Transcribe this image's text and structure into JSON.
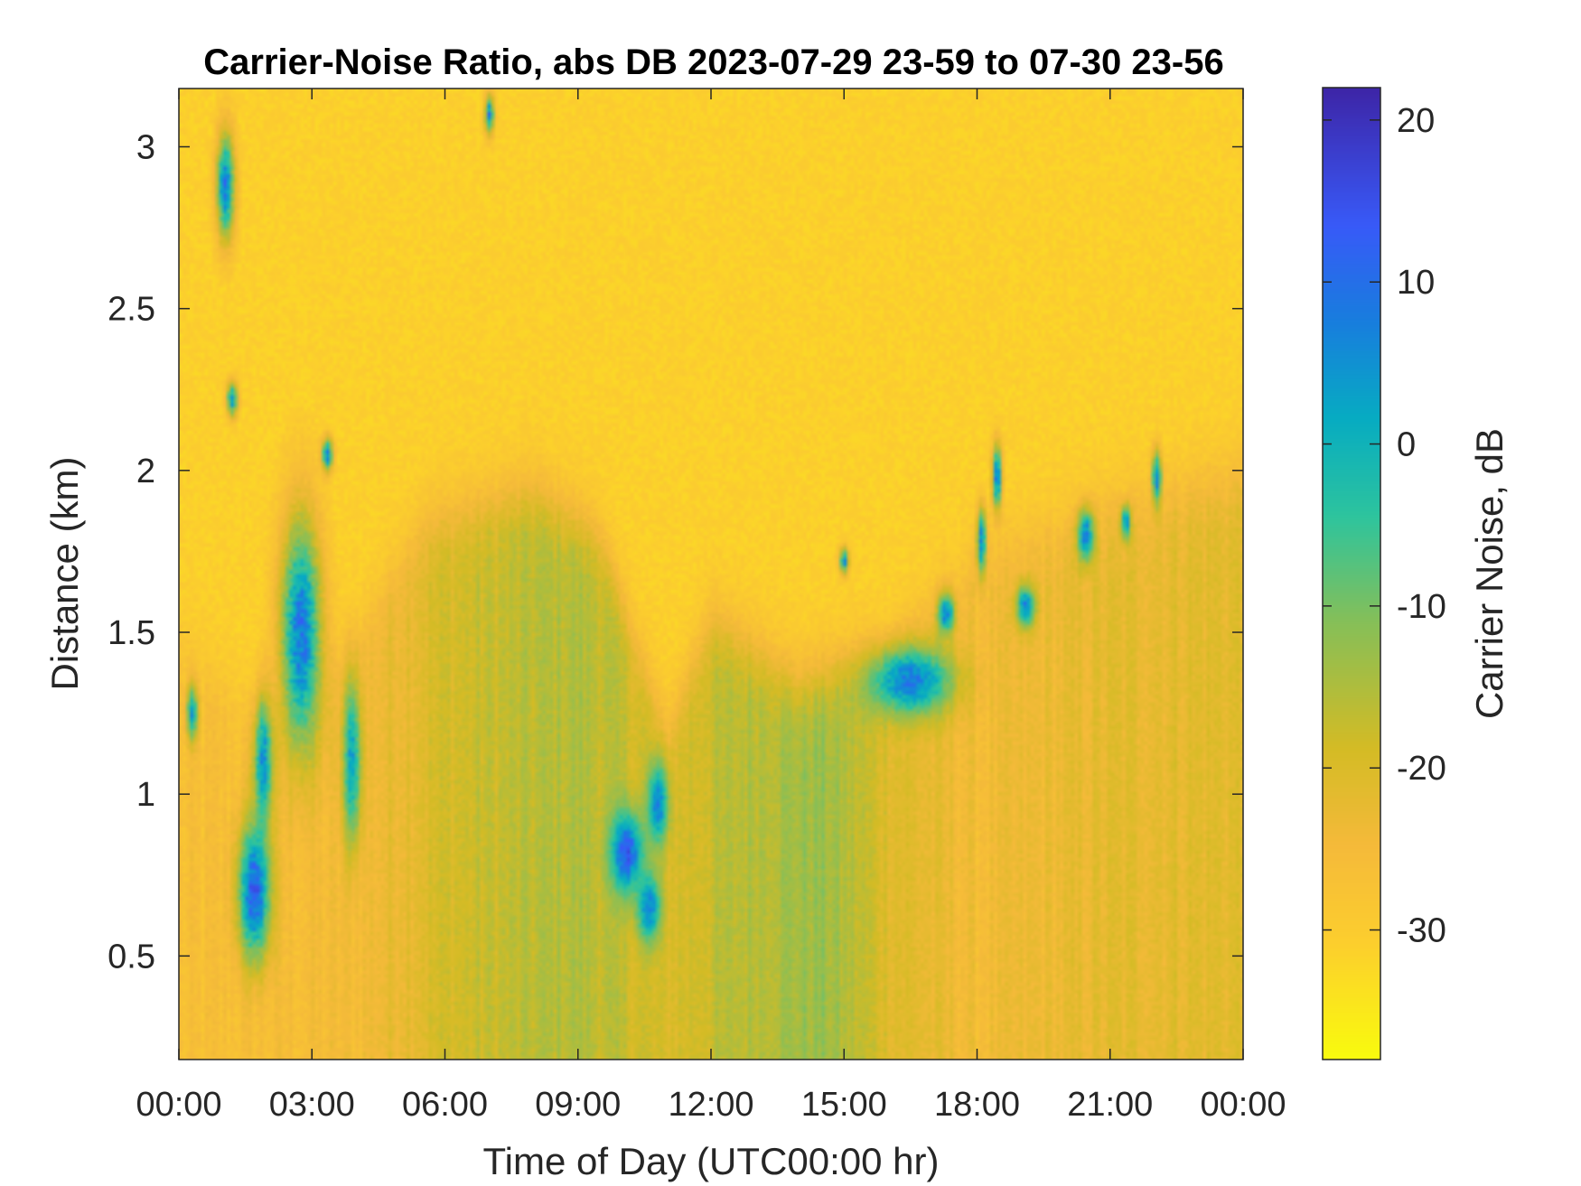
{
  "chart_data": {
    "type": "heatmap",
    "title": "Carrier-Noise Ratio, abs DB 2023-07-29 23-59 to 07-30 23-56",
    "xlabel": "Time of Day (UTC00:00 hr)",
    "ylabel": "Distance (km)",
    "colorbar_label": "Carrier Noise, dB",
    "colormap": "parula (reversed: high = dark blue, low = yellow)",
    "grid": false,
    "x_range_hours": [
      0,
      24
    ],
    "y_range_km": [
      0.18,
      3.18
    ],
    "color_range_db": [
      -38,
      22
    ],
    "x_ticks": [
      {
        "value": 0,
        "label": "00:00"
      },
      {
        "value": 3,
        "label": "03:00"
      },
      {
        "value": 6,
        "label": "06:00"
      },
      {
        "value": 9,
        "label": "09:00"
      },
      {
        "value": 12,
        "label": "12:00"
      },
      {
        "value": 15,
        "label": "15:00"
      },
      {
        "value": 18,
        "label": "18:00"
      },
      {
        "value": 21,
        "label": "21:00"
      },
      {
        "value": 24,
        "label": "00:00"
      }
    ],
    "y_ticks": [
      {
        "value": 0.5,
        "label": "0.5"
      },
      {
        "value": 1,
        "label": "1"
      },
      {
        "value": 1.5,
        "label": "1.5"
      },
      {
        "value": 2,
        "label": "2"
      },
      {
        "value": 2.5,
        "label": "2.5"
      },
      {
        "value": 3,
        "label": "3"
      }
    ],
    "colorbar_ticks": [
      {
        "value": 20,
        "label": "20"
      },
      {
        "value": 10,
        "label": "10"
      },
      {
        "value": 0,
        "label": "0"
      },
      {
        "value": -10,
        "label": "-10"
      },
      {
        "value": -20,
        "label": "-20"
      },
      {
        "value": -30,
        "label": "-30"
      }
    ],
    "background_db": -31,
    "boundary_layer_top_km": [
      {
        "t": 0,
        "h": 1.5
      },
      {
        "t": 2,
        "h": 1.2
      },
      {
        "t": 4,
        "h": 1.5
      },
      {
        "t": 5.5,
        "h": 1.85
      },
      {
        "t": 8,
        "h": 1.95
      },
      {
        "t": 9.5,
        "h": 1.8
      },
      {
        "t": 11,
        "h": 1.2
      },
      {
        "t": 12,
        "h": 1.55
      },
      {
        "t": 14,
        "h": 1.35
      },
      {
        "t": 16,
        "h": 1.45
      },
      {
        "t": 18,
        "h": 1.75
      },
      {
        "t": 21,
        "h": 1.9
      },
      {
        "t": 24,
        "h": 2.0
      }
    ],
    "layer_db": [
      {
        "t": 0,
        "db": -27
      },
      {
        "t": 4,
        "db": -25
      },
      {
        "t": 6,
        "db": -19
      },
      {
        "t": 9,
        "db": -15
      },
      {
        "t": 11,
        "db": -20
      },
      {
        "t": 13,
        "db": -15
      },
      {
        "t": 14.5,
        "db": -13
      },
      {
        "t": 16,
        "db": -20
      },
      {
        "t": 18,
        "db": -25
      },
      {
        "t": 21,
        "db": -22
      },
      {
        "t": 24,
        "db": -21
      }
    ],
    "features": [
      {
        "t": 1.05,
        "h": 2.88,
        "db": 8,
        "dt": 0.2,
        "dh": 0.16
      },
      {
        "t": 1.2,
        "h": 2.22,
        "db": 5,
        "dt": 0.12,
        "dh": 0.05
      },
      {
        "t": 0.3,
        "h": 1.25,
        "db": 3,
        "dt": 0.12,
        "dh": 0.08
      },
      {
        "t": 1.7,
        "h": 0.7,
        "db": 14,
        "dt": 0.35,
        "dh": 0.2
      },
      {
        "t": 1.9,
        "h": 1.1,
        "db": 6,
        "dt": 0.2,
        "dh": 0.2
      },
      {
        "t": 2.75,
        "h": 1.5,
        "db": 9,
        "dt": 0.45,
        "dh": 0.35
      },
      {
        "t": 3.35,
        "h": 2.05,
        "db": 6,
        "dt": 0.12,
        "dh": 0.05
      },
      {
        "t": 3.9,
        "h": 1.1,
        "db": 3,
        "dt": 0.2,
        "dh": 0.25
      },
      {
        "t": 7.0,
        "h": 3.1,
        "db": 6,
        "dt": 0.1,
        "dh": 0.06
      },
      {
        "t": 10.1,
        "h": 0.82,
        "db": 14,
        "dt": 0.35,
        "dh": 0.12
      },
      {
        "t": 10.6,
        "h": 0.65,
        "db": 8,
        "dt": 0.25,
        "dh": 0.1
      },
      {
        "t": 10.8,
        "h": 0.97,
        "db": 8,
        "dt": 0.22,
        "dh": 0.12
      },
      {
        "t": 15.0,
        "h": 1.72,
        "db": 4,
        "dt": 0.1,
        "dh": 0.04
      },
      {
        "t": 16.5,
        "h": 1.35,
        "db": 9,
        "dt": 0.9,
        "dh": 0.1
      },
      {
        "t": 17.3,
        "h": 1.56,
        "db": 8,
        "dt": 0.18,
        "dh": 0.06
      },
      {
        "t": 18.1,
        "h": 1.78,
        "db": 8,
        "dt": 0.1,
        "dh": 0.1
      },
      {
        "t": 18.45,
        "h": 1.98,
        "db": 10,
        "dt": 0.1,
        "dh": 0.1
      },
      {
        "t": 19.1,
        "h": 1.58,
        "db": 8,
        "dt": 0.2,
        "dh": 0.06
      },
      {
        "t": 20.45,
        "h": 1.8,
        "db": 8,
        "dt": 0.18,
        "dh": 0.08
      },
      {
        "t": 21.35,
        "h": 1.84,
        "db": 6,
        "dt": 0.1,
        "dh": 0.05
      },
      {
        "t": 22.05,
        "h": 1.98,
        "db": 8,
        "dt": 0.1,
        "dh": 0.08
      }
    ]
  }
}
